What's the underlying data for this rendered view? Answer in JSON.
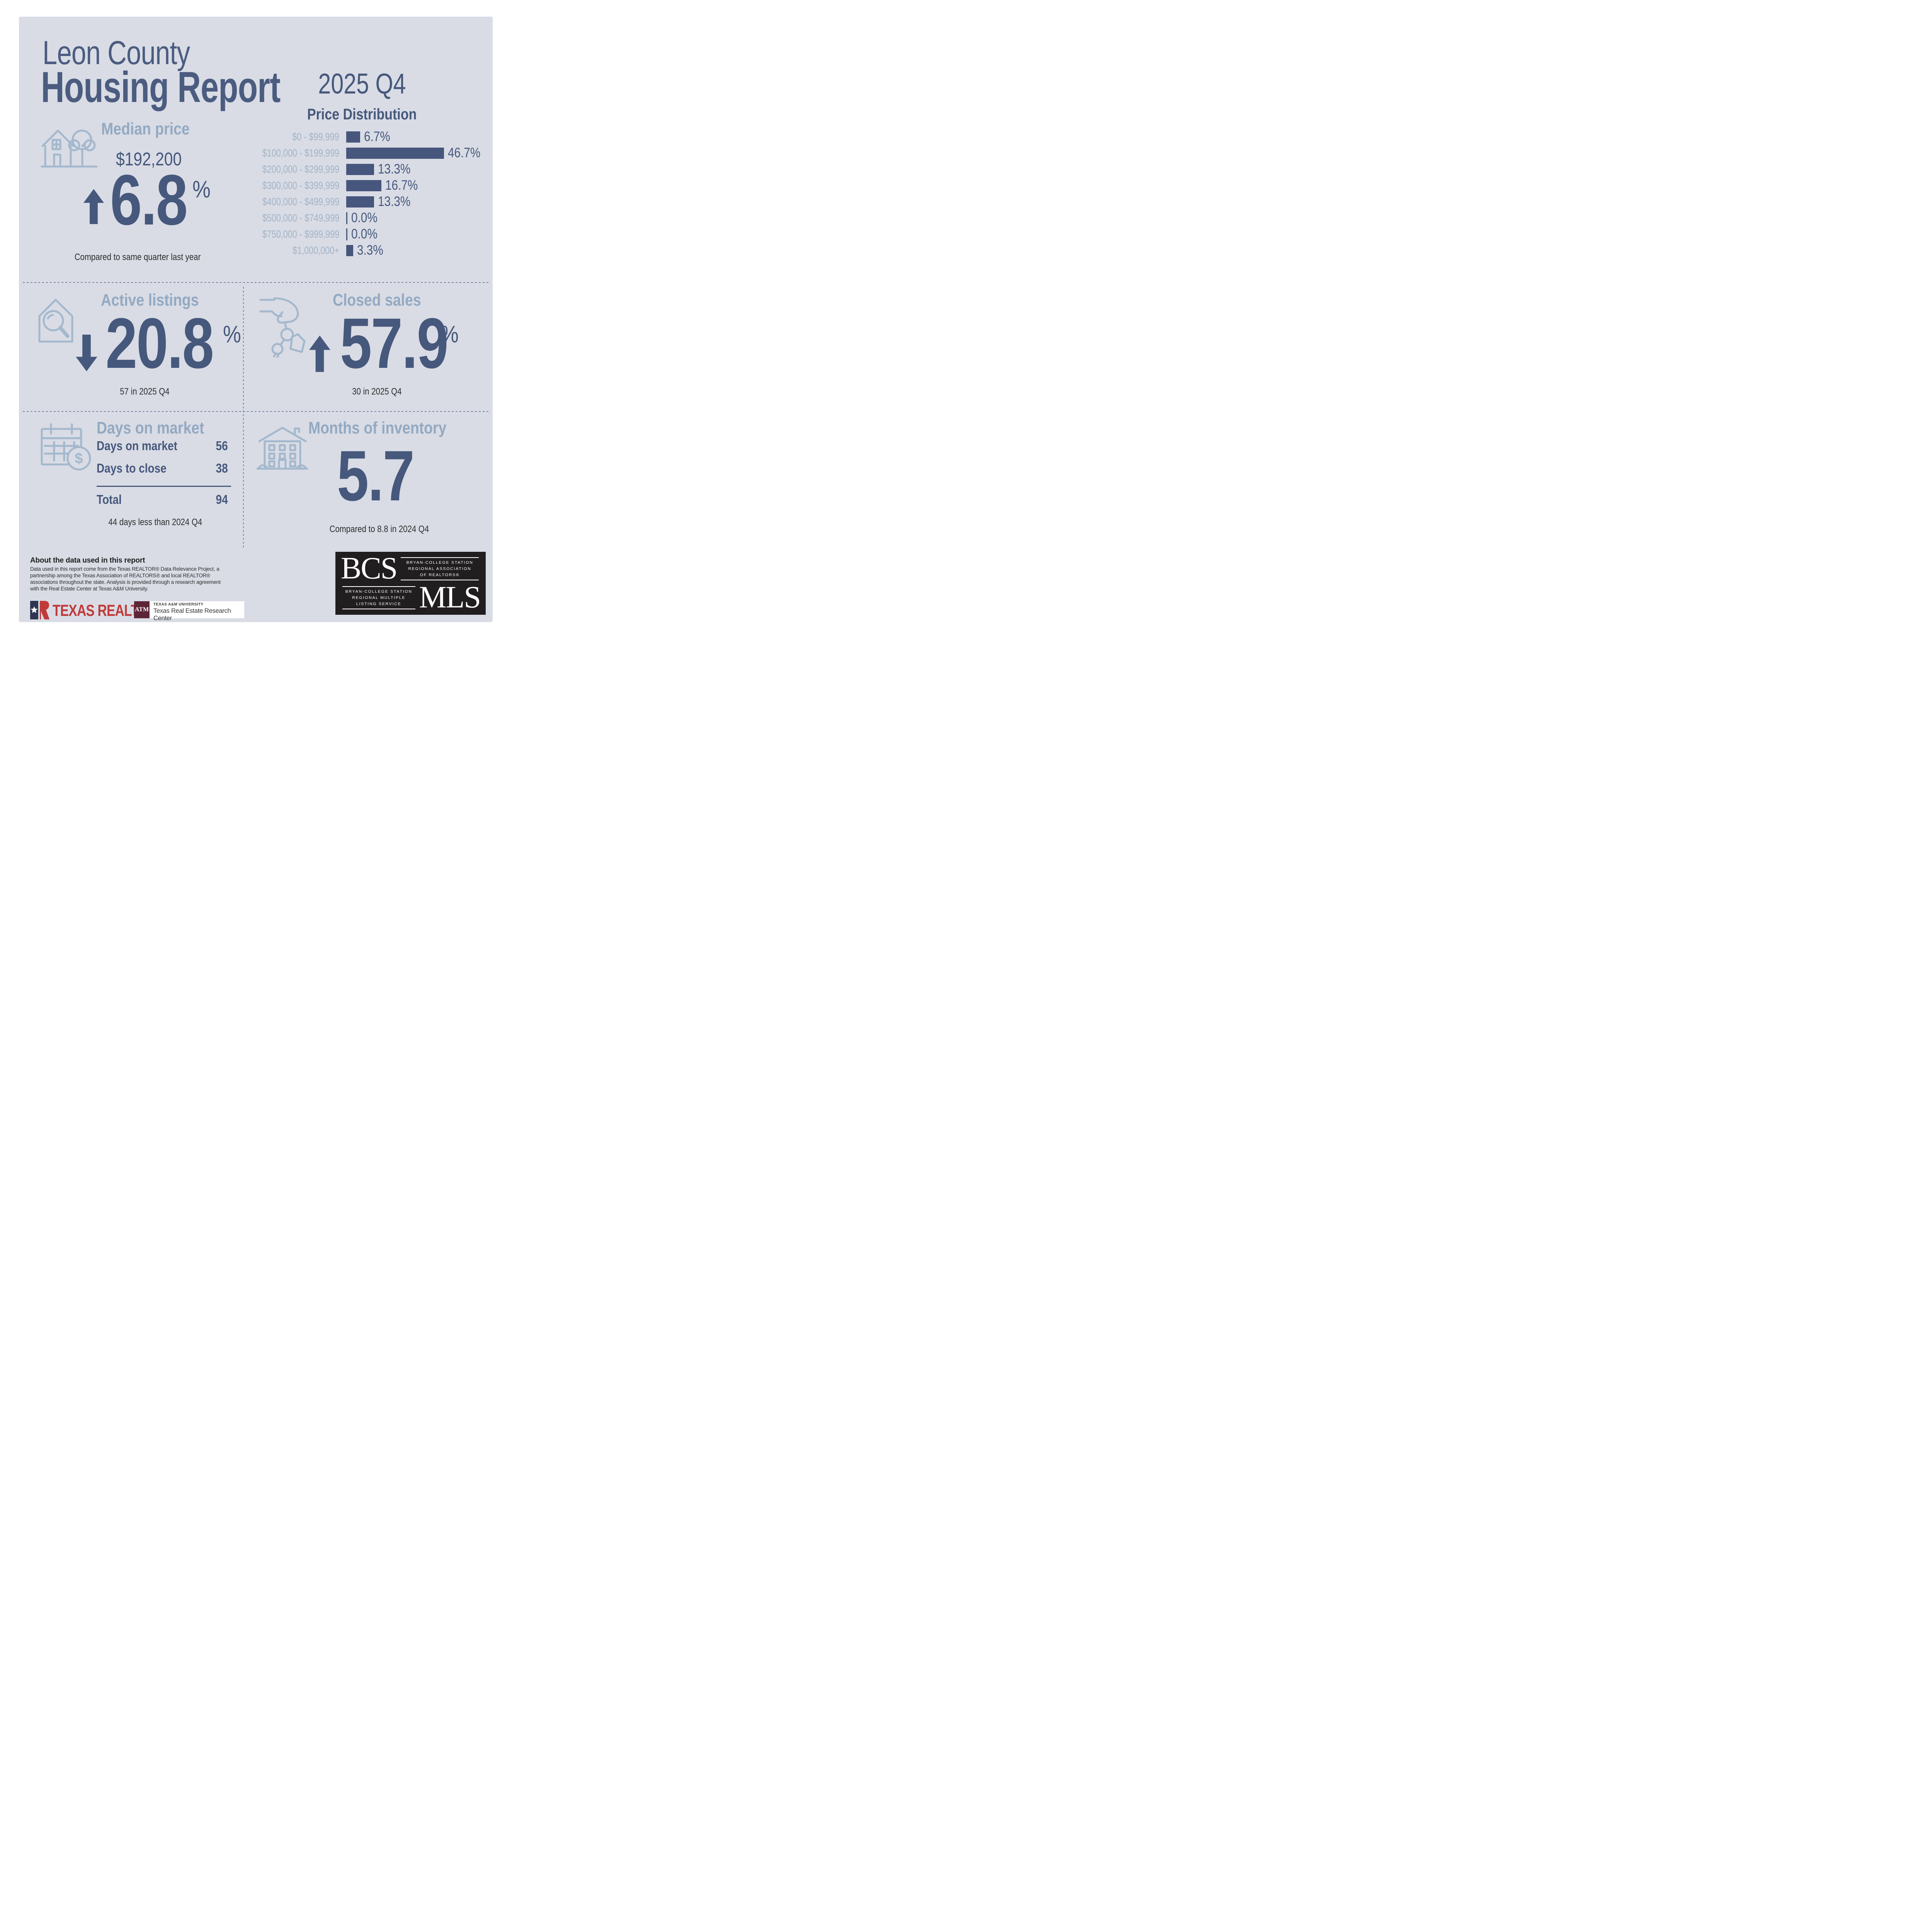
{
  "colors": {
    "card_background": "#d9dce5",
    "navy": "#46587c",
    "bar_navy": "#46567c",
    "heading_blue": "#93a9c2",
    "label_blue": "#a3b3c6",
    "icon_blue": "#a4b8cd",
    "caption_dark": "#2d2d2d",
    "divider": "#76869e",
    "realtor_red": "#c13a3a",
    "flag_navy": "#303652",
    "tamu_maroon": "#5c2636",
    "bcs_black": "#211e1f"
  },
  "header": {
    "county": "Leon County",
    "title": "Housing Report",
    "quarter": "2025 Q4"
  },
  "median_price": {
    "heading": "Median price",
    "value": "$192,200",
    "change": "6.8",
    "unit": "%",
    "direction": "up",
    "caption": "Compared to same quarter last year"
  },
  "chart_data": {
    "type": "bar",
    "orientation": "horizontal",
    "title": "Price Distribution",
    "categories": [
      "$0 - $99,999",
      "$100,000 - $199,999",
      "$200,000 - $299,999",
      "$300,000 - $399,999",
      "$400,000 - $499,999",
      "$500,000 - $749,999",
      "$750,000 - $999,999",
      "$1,000,000+"
    ],
    "values": [
      6.7,
      46.7,
      13.3,
      16.7,
      13.3,
      0.0,
      0.0,
      3.3
    ],
    "value_labels": [
      "6.7%",
      "46.7%",
      "13.3%",
      "16.7%",
      "13.3%",
      "0.0%",
      "0.0%",
      "3.3%"
    ],
    "xlim": [
      0,
      50
    ],
    "grid": false,
    "value_label_position": "end",
    "bar_color": "#46567c",
    "category_label_color": "#a3b3c6"
  },
  "active_listings": {
    "heading": "Active listings",
    "change": "20.8",
    "unit": "%",
    "direction": "down",
    "caption": "57 in 2025 Q4"
  },
  "closed_sales": {
    "heading": "Closed sales",
    "change": "57.9",
    "unit": "%",
    "direction": "up",
    "caption": "30 in 2025 Q4"
  },
  "days_on_market": {
    "heading": "Days on market",
    "rows": [
      {
        "label": "Days on market",
        "value": "56"
      },
      {
        "label": "Days to close",
        "value": "38"
      }
    ],
    "total_label": "Total",
    "total_value": "94",
    "caption": "44 days less than 2024 Q4"
  },
  "months_of_inventory": {
    "heading": "Months of inventory",
    "value": "5.7",
    "caption": "Compared to 8.8 in 2024 Q4"
  },
  "about": {
    "heading": "About the data used in this report",
    "body": "Data used in this report come from the Texas REALTOR® Data Relevance Project, a partnership among the Texas Association of REALTORS® and local REALTOR® associations throughout the state. Analysis is provided through a research agreement with the Real Estate Center at Texas A&M University."
  },
  "logos": {
    "texas_realtors": {
      "name": "TEXAS REALTORS",
      "registered": "®"
    },
    "tamu": {
      "monogram": "ATM",
      "university": "TEXAS A&M UNIVERSITY",
      "center": "Texas Real Estate Research Center"
    },
    "bcs_mls": {
      "acronym_top": "BCS",
      "acronym_bottom": "MLS",
      "association_lines": [
        "BRYAN-COLLEGE STATION",
        "REGIONAL ASSOCIATION",
        "OF REALTORS®"
      ],
      "mls_lines": [
        "BRYAN-COLLEGE STATION",
        "REGIONAL MULTIPLE",
        "LISTING SERVICE"
      ]
    }
  },
  "icons": {
    "median_price": "house-with-tree",
    "active_listings": "house-with-magnifier",
    "closed_sales": "hand-with-keys",
    "days_on_market": "calendar-with-dollar",
    "months_of_inventory": "apartment-building",
    "dollar_glyph": "$"
  }
}
